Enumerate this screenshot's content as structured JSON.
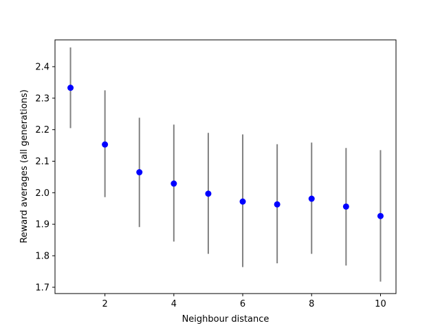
{
  "chart_data": {
    "type": "scatter",
    "xlabel": "Neighbour distance",
    "ylabel": "Reward averages (all generations)",
    "xlim": [
      0.55,
      10.45
    ],
    "ylim": [
      1.68,
      2.485
    ],
    "xticks": [
      2,
      4,
      6,
      8,
      10
    ],
    "yticks": [
      1.7,
      1.8,
      1.9,
      2.0,
      2.1,
      2.2,
      2.3,
      2.4
    ],
    "xtick_labels": [
      "2",
      "4",
      "6",
      "8",
      "10"
    ],
    "ytick_labels": [
      "1.7",
      "1.8",
      "1.9",
      "2.0",
      "2.1",
      "2.2",
      "2.3",
      "2.4"
    ],
    "grid": false,
    "series": [
      {
        "x": [
          1,
          2,
          3,
          4,
          5,
          6,
          7,
          8,
          9,
          10
        ],
        "y": [
          2.333,
          2.153,
          2.065,
          2.029,
          1.997,
          1.972,
          1.963,
          1.981,
          1.956,
          1.926
        ],
        "error_low": [
          2.205,
          1.986,
          1.891,
          1.845,
          1.806,
          1.764,
          1.776,
          1.806,
          1.769,
          1.718
        ],
        "error_high": [
          2.461,
          2.325,
          2.238,
          2.216,
          2.19,
          2.185,
          2.154,
          2.159,
          2.142,
          2.135
        ],
        "marker_color": "#0000ff",
        "errorbar_color": "#808080"
      }
    ]
  }
}
